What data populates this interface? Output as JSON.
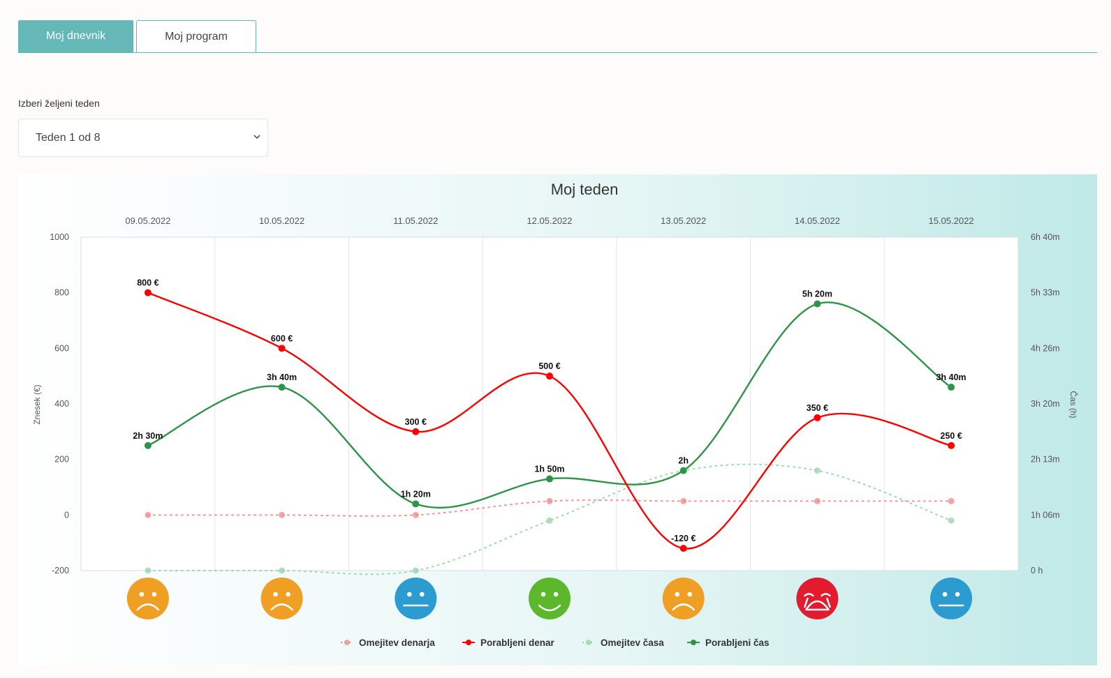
{
  "tabs": [
    {
      "label": "Moj dnevnik",
      "active": true
    },
    {
      "label": "Moj program",
      "active": false
    }
  ],
  "week_selector": {
    "label": "Izberi željeni teden",
    "selected": "Teden 1 od 8"
  },
  "colors": {
    "accent": "#66b8b8",
    "money_spent": "#ff0000",
    "money_limit": "#f08080",
    "time_spent": "#2e9447",
    "time_limit": "#8fd1a3",
    "mood_sad": "#ef9f24",
    "mood_neutral": "#2b9bd0",
    "mood_happy": "#5cb82b",
    "mood_crying": "#e21b2f"
  },
  "chart_data": {
    "type": "line",
    "title": "Moj teden",
    "categories": [
      "09.05.2022",
      "10.05.2022",
      "11.05.2022",
      "12.05.2022",
      "13.05.2022",
      "14.05.2022",
      "15.05.2022"
    ],
    "y_left": {
      "label": "Znesek (€)",
      "ylim": [
        -200,
        1000
      ],
      "ticks": [
        "-200",
        "0",
        "200",
        "400",
        "600",
        "800",
        "1000"
      ]
    },
    "y_right": {
      "label": "Čas (h)",
      "ticks": [
        "0 h",
        "1h 06m",
        "2h 13m",
        "3h 20m",
        "4h 26m",
        "5h 33m",
        "6h 40m"
      ],
      "ylim_minutes": [
        0,
        400
      ]
    },
    "series": [
      {
        "name": "Omejitev denarja",
        "axis": "left",
        "style": "dotted",
        "values": [
          0,
          0,
          0,
          50,
          50,
          50,
          50
        ]
      },
      {
        "name": "Porabljeni denar",
        "axis": "left",
        "style": "solid",
        "values": [
          800,
          600,
          300,
          500,
          -120,
          350,
          250
        ],
        "labels": [
          "800 €",
          "600 €",
          "300 €",
          "500 €",
          "-120 €",
          "350 €",
          "250 €"
        ]
      },
      {
        "name": "Omejitev časa",
        "axis": "right",
        "style": "dotted",
        "values": [
          0,
          0,
          0,
          60,
          120,
          120,
          60
        ]
      },
      {
        "name": "Porabljeni čas",
        "axis": "right",
        "style": "solid",
        "values": [
          150,
          220,
          80,
          110,
          120,
          320,
          220
        ],
        "labels": [
          "2h 30m",
          "3h 40m",
          "1h 20m",
          "1h 50m",
          "2h",
          "5h 20m",
          "3h 40m"
        ]
      }
    ],
    "moods": [
      "sad",
      "sad",
      "neutral",
      "happy",
      "sad",
      "crying",
      "neutral"
    ],
    "legend": "bottom-center",
    "grid": true
  }
}
